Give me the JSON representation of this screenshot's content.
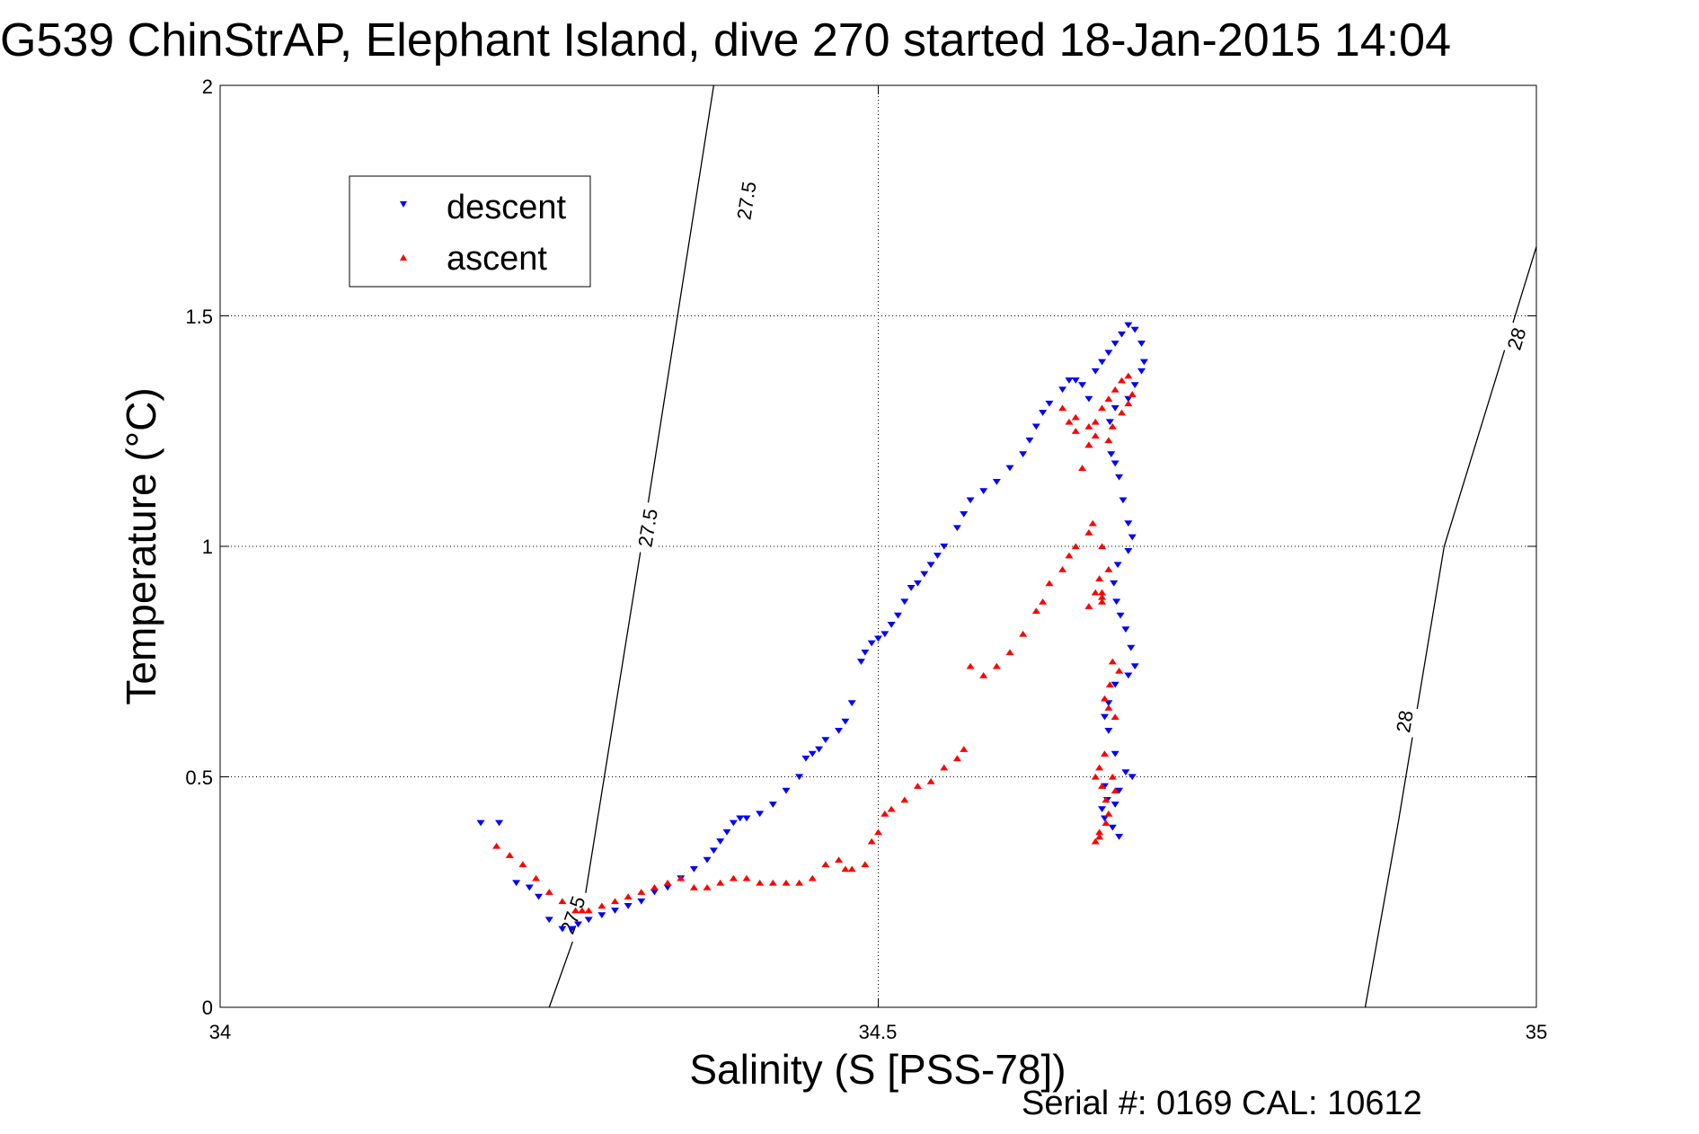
{
  "chart_data": {
    "type": "scatter",
    "title": "G539 ChinStrAP, Elephant Island, dive 270 started 18-Jan-2015 14:04",
    "xlabel": "Salinity (S [PSS-78])",
    "ylabel": "Temperature (°C)",
    "xlim": [
      34,
      35
    ],
    "ylim": [
      0,
      2
    ],
    "x_ticks": [
      "34",
      "34.5",
      "35"
    ],
    "y_ticks": [
      "0",
      "0.5",
      "1",
      "1.5",
      "2"
    ],
    "grid": true,
    "legend_position": "top-left",
    "footer": "Serial #: 0169 CAL: 10612",
    "colors": {
      "descent": "#0000ff",
      "ascent": "#ff0000",
      "contour": "#000000"
    },
    "contours": [
      {
        "label": "27.5",
        "points": [
          [
            34.25,
            0.0
          ],
          [
            34.275,
            0.2
          ],
          [
            34.32,
            1.0
          ],
          [
            34.375,
            2.0
          ]
        ],
        "label_positions": [
          [
            34.268,
            0.2
          ],
          [
            34.325,
            1.04
          ],
          [
            34.4,
            1.75
          ]
        ]
      },
      {
        "label": "28",
        "points": [
          [
            34.87,
            0.0
          ],
          [
            34.895,
            0.4
          ],
          [
            34.93,
            1.0
          ],
          [
            35.0,
            1.65
          ]
        ],
        "label_positions": [
          [
            34.9,
            0.62
          ],
          [
            34.985,
            1.45
          ]
        ]
      }
    ],
    "series": [
      {
        "name": "descent",
        "color": "#0000ff",
        "marker": "triangle-down",
        "x": [
          34.198,
          34.212,
          34.225,
          34.235,
          34.242,
          34.25,
          34.26,
          34.267,
          34.272,
          34.28,
          34.29,
          34.3,
          34.31,
          34.32,
          34.33,
          34.34,
          34.35,
          34.36,
          34.37,
          34.375,
          34.38,
          34.385,
          34.39,
          34.395,
          34.4,
          34.41,
          34.42,
          34.43,
          34.44,
          34.445,
          34.45,
          34.455,
          34.46,
          34.47,
          34.475,
          34.48,
          34.487,
          34.49,
          34.495,
          34.5,
          34.505,
          34.51,
          34.515,
          34.52,
          34.525,
          34.53,
          34.535,
          34.54,
          34.545,
          34.55,
          34.56,
          34.565,
          34.57,
          34.58,
          34.59,
          34.6,
          34.61,
          34.615,
          34.62,
          34.625,
          34.63,
          34.64,
          34.645,
          34.65,
          34.655,
          34.66,
          34.665,
          34.67,
          34.675,
          34.68,
          34.685,
          34.69,
          34.695,
          34.7,
          34.702,
          34.7,
          34.695,
          34.69,
          34.68,
          34.676,
          34.677,
          34.68,
          34.683,
          34.686,
          34.69,
          34.693,
          34.69,
          34.682,
          34.679,
          34.681,
          34.684,
          34.688,
          34.692,
          34.695,
          34.69,
          34.68,
          34.675,
          34.672,
          34.675,
          34.68,
          34.688,
          34.693,
          34.683,
          34.674,
          34.67,
          34.672,
          34.678,
          34.683,
          34.68,
          34.672
        ],
        "y": [
          0.4,
          0.4,
          0.27,
          0.26,
          0.24,
          0.19,
          0.17,
          0.17,
          0.18,
          0.19,
          0.2,
          0.21,
          0.22,
          0.23,
          0.25,
          0.26,
          0.28,
          0.3,
          0.32,
          0.34,
          0.36,
          0.38,
          0.4,
          0.41,
          0.41,
          0.42,
          0.44,
          0.47,
          0.5,
          0.54,
          0.55,
          0.56,
          0.58,
          0.6,
          0.62,
          0.66,
          0.75,
          0.77,
          0.79,
          0.8,
          0.81,
          0.83,
          0.85,
          0.88,
          0.91,
          0.92,
          0.94,
          0.96,
          0.98,
          1.0,
          1.04,
          1.07,
          1.1,
          1.12,
          1.14,
          1.17,
          1.2,
          1.23,
          1.26,
          1.29,
          1.31,
          1.34,
          1.36,
          1.36,
          1.35,
          1.32,
          1.38,
          1.4,
          1.42,
          1.44,
          1.46,
          1.48,
          1.47,
          1.44,
          1.4,
          1.38,
          1.35,
          1.32,
          1.3,
          1.27,
          1.2,
          1.18,
          1.15,
          1.1,
          1.05,
          1.02,
          0.99,
          0.96,
          0.92,
          0.88,
          0.85,
          0.82,
          0.78,
          0.74,
          0.72,
          0.7,
          0.66,
          0.63,
          0.6,
          0.55,
          0.51,
          0.5,
          0.47,
          0.45,
          0.43,
          0.41,
          0.39,
          0.37,
          0.44,
          0.48
        ]
      },
      {
        "name": "ascent",
        "color": "#ff0000",
        "marker": "triangle-up",
        "x": [
          34.21,
          34.22,
          34.23,
          34.24,
          34.25,
          34.26,
          34.27,
          34.275,
          34.28,
          34.29,
          34.3,
          34.31,
          34.32,
          34.33,
          34.34,
          34.35,
          34.36,
          34.37,
          34.38,
          34.39,
          34.4,
          34.41,
          34.42,
          34.43,
          34.44,
          34.45,
          34.46,
          34.47,
          34.475,
          34.48,
          34.49,
          34.495,
          34.5,
          34.505,
          34.51,
          34.52,
          34.53,
          34.54,
          34.55,
          34.56,
          34.565,
          34.57,
          34.58,
          34.59,
          34.6,
          34.61,
          34.62,
          34.625,
          34.63,
          34.64,
          34.645,
          34.65,
          34.655,
          34.66,
          34.665,
          34.67,
          34.675,
          34.68,
          34.685,
          34.69,
          34.693,
          34.69,
          34.685,
          34.678,
          34.675,
          34.66,
          34.65,
          34.645,
          34.64,
          34.65,
          34.66,
          34.665,
          34.663,
          34.66,
          34.67,
          34.675,
          34.665,
          34.66,
          34.67,
          34.678,
          34.683,
          34.676,
          34.672,
          34.675,
          34.68,
          34.672,
          34.668,
          34.665,
          34.67,
          34.673,
          34.675,
          34.68,
          34.678,
          34.673,
          34.668,
          34.665,
          34.668,
          34.67,
          34.67,
          34.668
        ],
        "y": [
          0.35,
          0.33,
          0.31,
          0.28,
          0.25,
          0.23,
          0.21,
          0.21,
          0.21,
          0.22,
          0.23,
          0.24,
          0.25,
          0.26,
          0.27,
          0.28,
          0.26,
          0.26,
          0.27,
          0.28,
          0.28,
          0.27,
          0.27,
          0.27,
          0.27,
          0.28,
          0.31,
          0.32,
          0.3,
          0.3,
          0.31,
          0.36,
          0.38,
          0.42,
          0.43,
          0.45,
          0.48,
          0.49,
          0.52,
          0.54,
          0.56,
          0.74,
          0.72,
          0.74,
          0.77,
          0.81,
          0.86,
          0.88,
          0.92,
          0.95,
          0.98,
          1.0,
          1.17,
          1.22,
          1.27,
          1.3,
          1.32,
          1.34,
          1.36,
          1.37,
          1.33,
          1.31,
          1.29,
          1.26,
          1.23,
          1.22,
          1.25,
          1.27,
          1.3,
          1.28,
          1.26,
          1.24,
          1.05,
          1.03,
          1.0,
          0.95,
          0.9,
          0.87,
          0.89,
          0.75,
          0.73,
          0.7,
          0.67,
          0.65,
          0.63,
          0.55,
          0.52,
          0.5,
          0.48,
          0.45,
          0.42,
          0.47,
          0.5,
          0.4,
          0.38,
          0.36,
          0.37,
          0.88,
          0.9,
          0.93
        ]
      }
    ]
  }
}
